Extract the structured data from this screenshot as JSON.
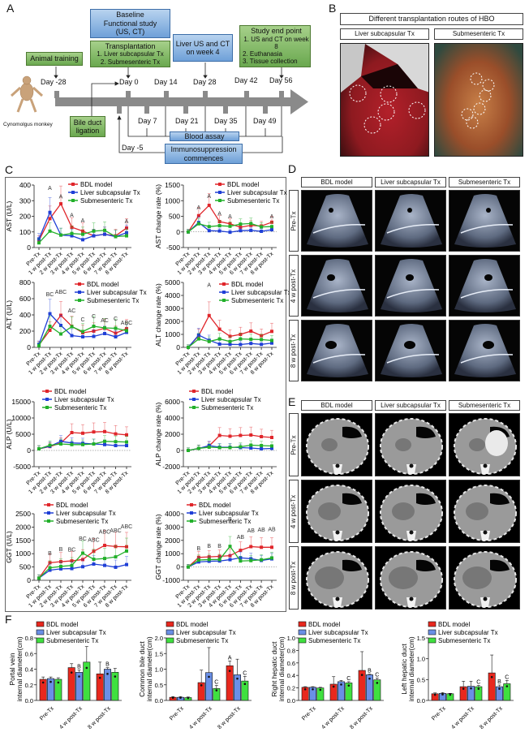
{
  "panels": {
    "A": "A",
    "B": "B",
    "C": "C",
    "D": "D",
    "E": "E",
    "F": "F"
  },
  "timeline": {
    "subject": "Cynomolgus monkey",
    "boxes": {
      "animal_training": "Animal training",
      "baseline": [
        "Baseline",
        "Functional study",
        "(US, CT)"
      ],
      "transplantation": [
        "Transplantation",
        "1. Liver subcapsular Tx",
        "2. Submesenteric Tx"
      ],
      "liver_us_ct": [
        "Liver US and CT",
        "on week 4"
      ],
      "end_point": [
        "Study end point",
        "1. US and CT on week 8",
        "2. Euthanasia",
        "3. Tissue collection"
      ],
      "bile_duct": [
        "Bile duct",
        "ligation"
      ],
      "blood_assay": "Blood assay",
      "immuno": [
        "Immunosuppression",
        "commences"
      ]
    },
    "days_top": [
      "Day -28",
      "Day 0",
      "Day 14",
      "Day 28",
      "Day 42",
      "Day 56"
    ],
    "days_bottom": [
      "Day 7",
      "Day 21",
      "Day 35",
      "Day 49"
    ],
    "day_minus5": "Day -5"
  },
  "panelB": {
    "title": "Different transplantation routes of HBO",
    "cols": [
      "Liver subcapsular Tx",
      "Submesenteric Tx"
    ]
  },
  "imaging": {
    "cols": [
      "BDL model",
      "Liver subcapsular Tx",
      "Submesenteric Tx"
    ],
    "rows": [
      "Pre-Tx",
      "4 w post-Tx",
      "8 w post-Tx"
    ]
  },
  "colors": {
    "bdl": "#e0262b",
    "liver": "#1f3fd6",
    "subm": "#22b02a",
    "bdl_bar": "#e8281e",
    "liver_bar": "#6a8fe6",
    "subm_bar": "#3fe03f"
  },
  "chart_data": [
    {
      "id": "ast",
      "type": "line",
      "ylabel": "AST (U/L)",
      "ylim": [
        0,
        400
      ],
      "yticks": [
        0,
        100,
        200,
        300,
        400
      ],
      "categories": [
        "Pre-Tx",
        "1 w post-Tx",
        "2 w post-Tx",
        "3 w post-Tx",
        "4 w post-Tx",
        "5 w post-Tx",
        "6 w post-Tx",
        "7 w post-Tx",
        "8 w post-Tx"
      ],
      "series": [
        {
          "name": "BDL model",
          "values": [
            45,
            185,
            280,
            130,
            105,
            75,
            85,
            75,
            125
          ]
        },
        {
          "name": "Liver subcapsular Tx",
          "values": [
            55,
            225,
            80,
            75,
            50,
            75,
            85,
            70,
            95
          ]
        },
        {
          "name": "Submesenteric Tx",
          "values": [
            30,
            105,
            80,
            90,
            85,
            105,
            110,
            70,
            75
          ]
        }
      ],
      "annotations": [
        {
          "i": 1,
          "t": "A",
          "y": 370
        },
        {
          "i": 2,
          "t": "A",
          "y": 315
        },
        {
          "i": 3,
          "t": "A",
          "y": 195
        },
        {
          "i": 4,
          "t": "A",
          "y": 160
        },
        {
          "i": 8,
          "t": "A",
          "y": 155
        }
      ]
    },
    {
      "id": "ast_rate",
      "type": "line",
      "ylabel": "AST change rate (%)",
      "ylim": [
        -500,
        1500
      ],
      "yticks": [
        -500,
        0,
        500,
        1000,
        1500
      ],
      "categories": [
        "Pre-Tx",
        "1 w post-Tx",
        "2 w post-Tx",
        "3 w post-Tx",
        "4 w post-Tx",
        "5 w post-Tx",
        "6 w post-Tx",
        "7 w post-Tx",
        "8 w post-Tx"
      ],
      "series": [
        {
          "name": "BDL model",
          "values": [
            0,
            520,
            850,
            330,
            260,
            150,
            210,
            190,
            310
          ]
        },
        {
          "name": "Liver subcapsular Tx",
          "values": [
            0,
            300,
            40,
            30,
            -10,
            40,
            50,
            20,
            70
          ]
        },
        {
          "name": "Submesenteric Tx",
          "values": [
            0,
            260,
            170,
            200,
            180,
            250,
            270,
            160,
            170
          ]
        }
      ],
      "annotations": [
        {
          "i": 1,
          "t": "A",
          "y": 720
        },
        {
          "i": 2,
          "t": "A",
          "y": 1080
        },
        {
          "i": 3,
          "t": "A",
          "y": 520
        },
        {
          "i": 4,
          "t": "A",
          "y": 440
        },
        {
          "i": 8,
          "t": "A",
          "y": 440
        }
      ]
    },
    {
      "id": "alt",
      "type": "line",
      "ylabel": "ALT (U/L)",
      "ylim": [
        0,
        800
      ],
      "yticks": [
        0,
        200,
        400,
        600,
        800
      ],
      "categories": [
        "Pre-Tx",
        "1 w post-Tx",
        "2 w post-Tx",
        "3 w post-Tx",
        "4 w post-Tx",
        "5 w post-Tx",
        "6 w post-Tx",
        "7 w post-Tx",
        "8 w post-Tx"
      ],
      "series": [
        {
          "name": "BDL model",
          "values": [
            30,
            210,
            395,
            260,
            180,
            200,
            235,
            175,
            230
          ]
        },
        {
          "name": "Liver subcapsular Tx",
          "values": [
            35,
            415,
            270,
            145,
            130,
            135,
            170,
            130,
            185
          ]
        },
        {
          "name": "Submesenteric Tx",
          "values": [
            20,
            260,
            165,
            255,
            195,
            260,
            240,
            235,
            205
          ]
        }
      ],
      "annotations": [
        {
          "i": 1,
          "t": "BC",
          "y": 630
        },
        {
          "i": 2,
          "t": "ABC",
          "y": 660
        },
        {
          "i": 3,
          "t": "AC",
          "y": 430
        },
        {
          "i": 4,
          "t": "C",
          "y": 320
        },
        {
          "i": 5,
          "t": "C",
          "y": 360
        },
        {
          "i": 6,
          "t": "AC",
          "y": 310
        },
        {
          "i": 7,
          "t": "C",
          "y": 330
        },
        {
          "i": 8,
          "t": "ABC",
          "y": 280
        }
      ]
    },
    {
      "id": "alt_rate",
      "type": "line",
      "ylabel": "ALT change rate (%)",
      "ylim": [
        0,
        5000
      ],
      "yticks": [
        0,
        1000,
        2000,
        3000,
        4000,
        5000
      ],
      "categories": [
        "Pre-Tx",
        "1 w post-Tx",
        "2 w post-Tx",
        "3 w post-Tx",
        "4 w post-Tx",
        "5 w post-Tx",
        "6 w post-Tx",
        "7 w post-Tx",
        "8 w post-Tx"
      ],
      "series": [
        {
          "name": "BDL model",
          "values": [
            0,
            900,
            2450,
            1400,
            850,
            1000,
            1250,
            900,
            1230
          ]
        },
        {
          "name": "Liver subcapsular Tx",
          "values": [
            0,
            950,
            550,
            250,
            230,
            220,
            300,
            230,
            330
          ]
        },
        {
          "name": "Submesenteric Tx",
          "values": [
            0,
            650,
            450,
            650,
            450,
            650,
            620,
            600,
            530
          ]
        }
      ],
      "annotations": [
        {
          "i": 2,
          "t": "A",
          "y": 4650
        }
      ]
    },
    {
      "id": "alp",
      "type": "line",
      "ylabel": "ALP (U/L)",
      "ylim": [
        -5000,
        15000
      ],
      "yticks": [
        -5000,
        0,
        5000,
        10000,
        15000
      ],
      "categories": [
        "Pre-Tx",
        "1 w post-Tx",
        "2 w post-Tx",
        "3 w post-Tx",
        "4 w post-Tx",
        "5 w post-Tx",
        "6 w post-Tx",
        "7 w post-Tx",
        "8 w post-Tx"
      ],
      "series": [
        {
          "name": "BDL model",
          "values": [
            500,
            1200,
            2300,
            5500,
            5300,
            5700,
            5800,
            5100,
            4800
          ]
        },
        {
          "name": "Liver subcapsular Tx",
          "values": [
            500,
            1300,
            2800,
            2300,
            2200,
            2000,
            1800,
            1500,
            1500
          ]
        },
        {
          "name": "Submesenteric Tx",
          "values": [
            500,
            1600,
            2000,
            1800,
            1800,
            2000,
            2800,
            2700,
            2600
          ]
        }
      ],
      "annotations": []
    },
    {
      "id": "alp_rate",
      "type": "line",
      "ylabel": "ALP change rate (%)",
      "ylim": [
        -2000,
        6000
      ],
      "yticks": [
        -2000,
        0,
        2000,
        4000,
        6000
      ],
      "categories": [
        "Pre-Tx",
        "1 w post-Tx",
        "2 w post-Tx",
        "3 w post-Tx",
        "4 w post-Tx",
        "5 w post-Tx",
        "6 w post-Tx",
        "7 w post-Tx",
        "8 w post-Tx"
      ],
      "series": [
        {
          "name": "BDL model",
          "values": [
            0,
            250,
            550,
            1850,
            1750,
            1850,
            1900,
            1700,
            1600
          ]
        },
        {
          "name": "Liver subcapsular Tx",
          "values": [
            0,
            250,
            600,
            400,
            400,
            350,
            300,
            200,
            250
          ]
        },
        {
          "name": "Submesenteric Tx",
          "values": [
            0,
            250,
            400,
            350,
            350,
            450,
            650,
            600,
            550
          ]
        }
      ],
      "annotations": []
    },
    {
      "id": "ggt",
      "type": "line",
      "ylabel": "GGT (U/L)",
      "ylim": [
        0,
        2500
      ],
      "yticks": [
        0,
        500,
        1000,
        1500,
        2000,
        2500
      ],
      "categories": [
        "Pre-Tx",
        "1 w post-Tx",
        "2 w post-Tx",
        "3 w post-Tx",
        "4 w post-Tx",
        "5 w post-Tx",
        "6 w post-Tx",
        "7 w post-Tx",
        "8 w post-Tx"
      ],
      "series": [
        {
          "name": "BDL model",
          "values": [
            80,
            660,
            700,
            730,
            780,
            1090,
            1310,
            1270,
            1260
          ]
        },
        {
          "name": "Liver subcapsular Tx",
          "values": [
            80,
            380,
            430,
            440,
            510,
            610,
            560,
            490,
            590
          ]
        },
        {
          "name": "Submesenteric Tx",
          "values": [
            80,
            470,
            520,
            560,
            1020,
            790,
            820,
            880,
            1100
          ]
        }
      ],
      "annotations": [
        {
          "i": 1,
          "t": "B",
          "y": 950
        },
        {
          "i": 2,
          "t": "B",
          "y": 1100
        },
        {
          "i": 3,
          "t": "BC",
          "y": 1080
        },
        {
          "i": 4,
          "t": "BC",
          "y": 1500
        },
        {
          "i": 5,
          "t": "ABC",
          "y": 1450
        },
        {
          "i": 6,
          "t": "ABC",
          "y": 1750
        },
        {
          "i": 7,
          "t": "ABC",
          "y": 1800
        },
        {
          "i": 8,
          "t": "ABC",
          "y": 1950
        }
      ]
    },
    {
      "id": "ggt_rate",
      "type": "line",
      "ylabel": "GGT change rate (%)",
      "ylim": [
        -1000,
        4000
      ],
      "yticks": [
        -1000,
        0,
        1000,
        2000,
        3000,
        4000
      ],
      "categories": [
        "Pre-Tx",
        "1 w post-Tx",
        "2 w post-Tx",
        "3 w post-Tx",
        "4 w post-Tx",
        "5 w post-Tx",
        "6 w post-Tx",
        "7 w post-Tx",
        "8 w post-Tx"
      ],
      "series": [
        {
          "name": "BDL model",
          "values": [
            0,
            720,
            760,
            800,
            850,
            1250,
            1530,
            1480,
            1480
          ]
        },
        {
          "name": "Liver subcapsular Tx",
          "values": [
            0,
            380,
            430,
            450,
            550,
            690,
            620,
            490,
            610
          ]
        },
        {
          "name": "Submesenteric Tx",
          "values": [
            0,
            520,
            560,
            560,
            1550,
            450,
            480,
            540,
            680
          ]
        }
      ],
      "annotations": [
        {
          "i": 1,
          "t": "B",
          "y": 1250
        },
        {
          "i": 2,
          "t": "B",
          "y": 1450
        },
        {
          "i": 3,
          "t": "B",
          "y": 1450
        },
        {
          "i": 4,
          "t": "B",
          "y": 3450
        },
        {
          "i": 5,
          "t": "AB",
          "y": 2100
        },
        {
          "i": 6,
          "t": "AB",
          "y": 2600
        },
        {
          "i": 7,
          "t": "AB",
          "y": 2650
        },
        {
          "i": 8,
          "t": "AB",
          "y": 2700
        }
      ]
    },
    {
      "id": "portal",
      "type": "bar",
      "ylabel": "Portal vein internal diameter(cm)",
      "ylim": [
        0,
        0.8
      ],
      "yticks": [
        0.0,
        0.2,
        0.4,
        0.6,
        0.8
      ],
      "categories": [
        "Pre-Tx",
        "4 w post-Tx",
        "8 w post-Tx"
      ],
      "series": [
        {
          "name": "BDL model",
          "values": [
            0.27,
            0.42,
            0.34
          ],
          "err": [
            0.03,
            0.05,
            0.15
          ]
        },
        {
          "name": "Liver subcapsular Tx",
          "values": [
            0.28,
            0.36,
            0.4
          ],
          "err": [
            0.02,
            0.03,
            0.02
          ]
        },
        {
          "name": "Submesenteric Tx",
          "values": [
            0.27,
            0.49,
            0.36
          ],
          "err": [
            0.02,
            0.2,
            0.05
          ]
        }
      ],
      "annotations": [
        {
          "g": 1,
          "s": 1,
          "t": "B"
        },
        {
          "g": 2,
          "s": 1,
          "t": "B"
        }
      ]
    },
    {
      "id": "cbd",
      "type": "bar",
      "ylabel": "Common bile duct internal diameter(cm)",
      "ylim": [
        0,
        2.0
      ],
      "yticks": [
        0.0,
        0.5,
        1.0,
        1.5,
        2.0
      ],
      "categories": [
        "Pre-Tx",
        "4 w post-Tx",
        "8 w post-Tx"
      ],
      "series": [
        {
          "name": "BDL model",
          "values": [
            0.1,
            0.57,
            1.11
          ],
          "err": [
            0.02,
            0.4,
            0.15
          ]
        },
        {
          "name": "Liver subcapsular Tx",
          "values": [
            0.1,
            0.89,
            0.82
          ],
          "err": [
            0.02,
            0.8,
            0.5
          ]
        },
        {
          "name": "Submesenteric Tx",
          "values": [
            0.09,
            0.38,
            0.62
          ],
          "err": [
            0.02,
            0.1,
            0.15
          ]
        }
      ],
      "annotations": [
        {
          "g": 1,
          "s": 2,
          "t": "C"
        },
        {
          "g": 2,
          "s": 0,
          "t": "A"
        },
        {
          "g": 2,
          "s": 2,
          "t": "C"
        }
      ]
    },
    {
      "id": "rhd",
      "type": "bar",
      "ylabel": "Right hepatic duct internal diameter(cm)",
      "ylim": [
        0,
        1.0
      ],
      "yticks": [
        0.0,
        0.2,
        0.4,
        0.6,
        0.8,
        1.0
      ],
      "categories": [
        "Pre-Tx",
        "4 w post-Tx",
        "8 w post-Tx"
      ],
      "series": [
        {
          "name": "BDL model",
          "values": [
            0.21,
            0.26,
            0.48
          ],
          "err": [
            0.01,
            0.12,
            0.3
          ]
        },
        {
          "name": "Liver subcapsular Tx",
          "values": [
            0.21,
            0.3,
            0.41
          ],
          "err": [
            0.01,
            0.02,
            0.01
          ]
        },
        {
          "name": "Submesenteric Tx",
          "values": [
            0.2,
            0.28,
            0.33
          ],
          "err": [
            0.01,
            0.02,
            0.03
          ]
        }
      ],
      "annotations": [
        {
          "g": 1,
          "s": 2,
          "t": "C"
        },
        {
          "g": 2,
          "s": 1,
          "t": "B"
        },
        {
          "g": 2,
          "s": 2,
          "t": "C"
        }
      ]
    },
    {
      "id": "lhd",
      "type": "bar",
      "ylabel": "Left hepatic duct internal diameter(cm)",
      "ylim": [
        0,
        1.5
      ],
      "yticks": [
        0.0,
        0.5,
        1.0,
        1.5
      ],
      "categories": [
        "Pre-Tx",
        "4 w post-Tx",
        "8 w post-Tx"
      ],
      "series": [
        {
          "name": "BDL model",
          "values": [
            0.16,
            0.33,
            0.66
          ],
          "err": [
            0.02,
            0.13,
            0.43
          ]
        },
        {
          "name": "Liver subcapsular Tx",
          "values": [
            0.17,
            0.34,
            0.33
          ],
          "err": [
            0.02,
            0.12,
            0.04
          ]
        },
        {
          "name": "Submesenteric Tx",
          "values": [
            0.16,
            0.33,
            0.4
          ],
          "err": [
            0.01,
            0.03,
            0.08
          ]
        }
      ],
      "annotations": [
        {
          "g": 1,
          "s": 2,
          "t": "C"
        },
        {
          "g": 2,
          "s": 1,
          "t": "B"
        },
        {
          "g": 2,
          "s": 2,
          "t": "C"
        }
      ]
    }
  ]
}
